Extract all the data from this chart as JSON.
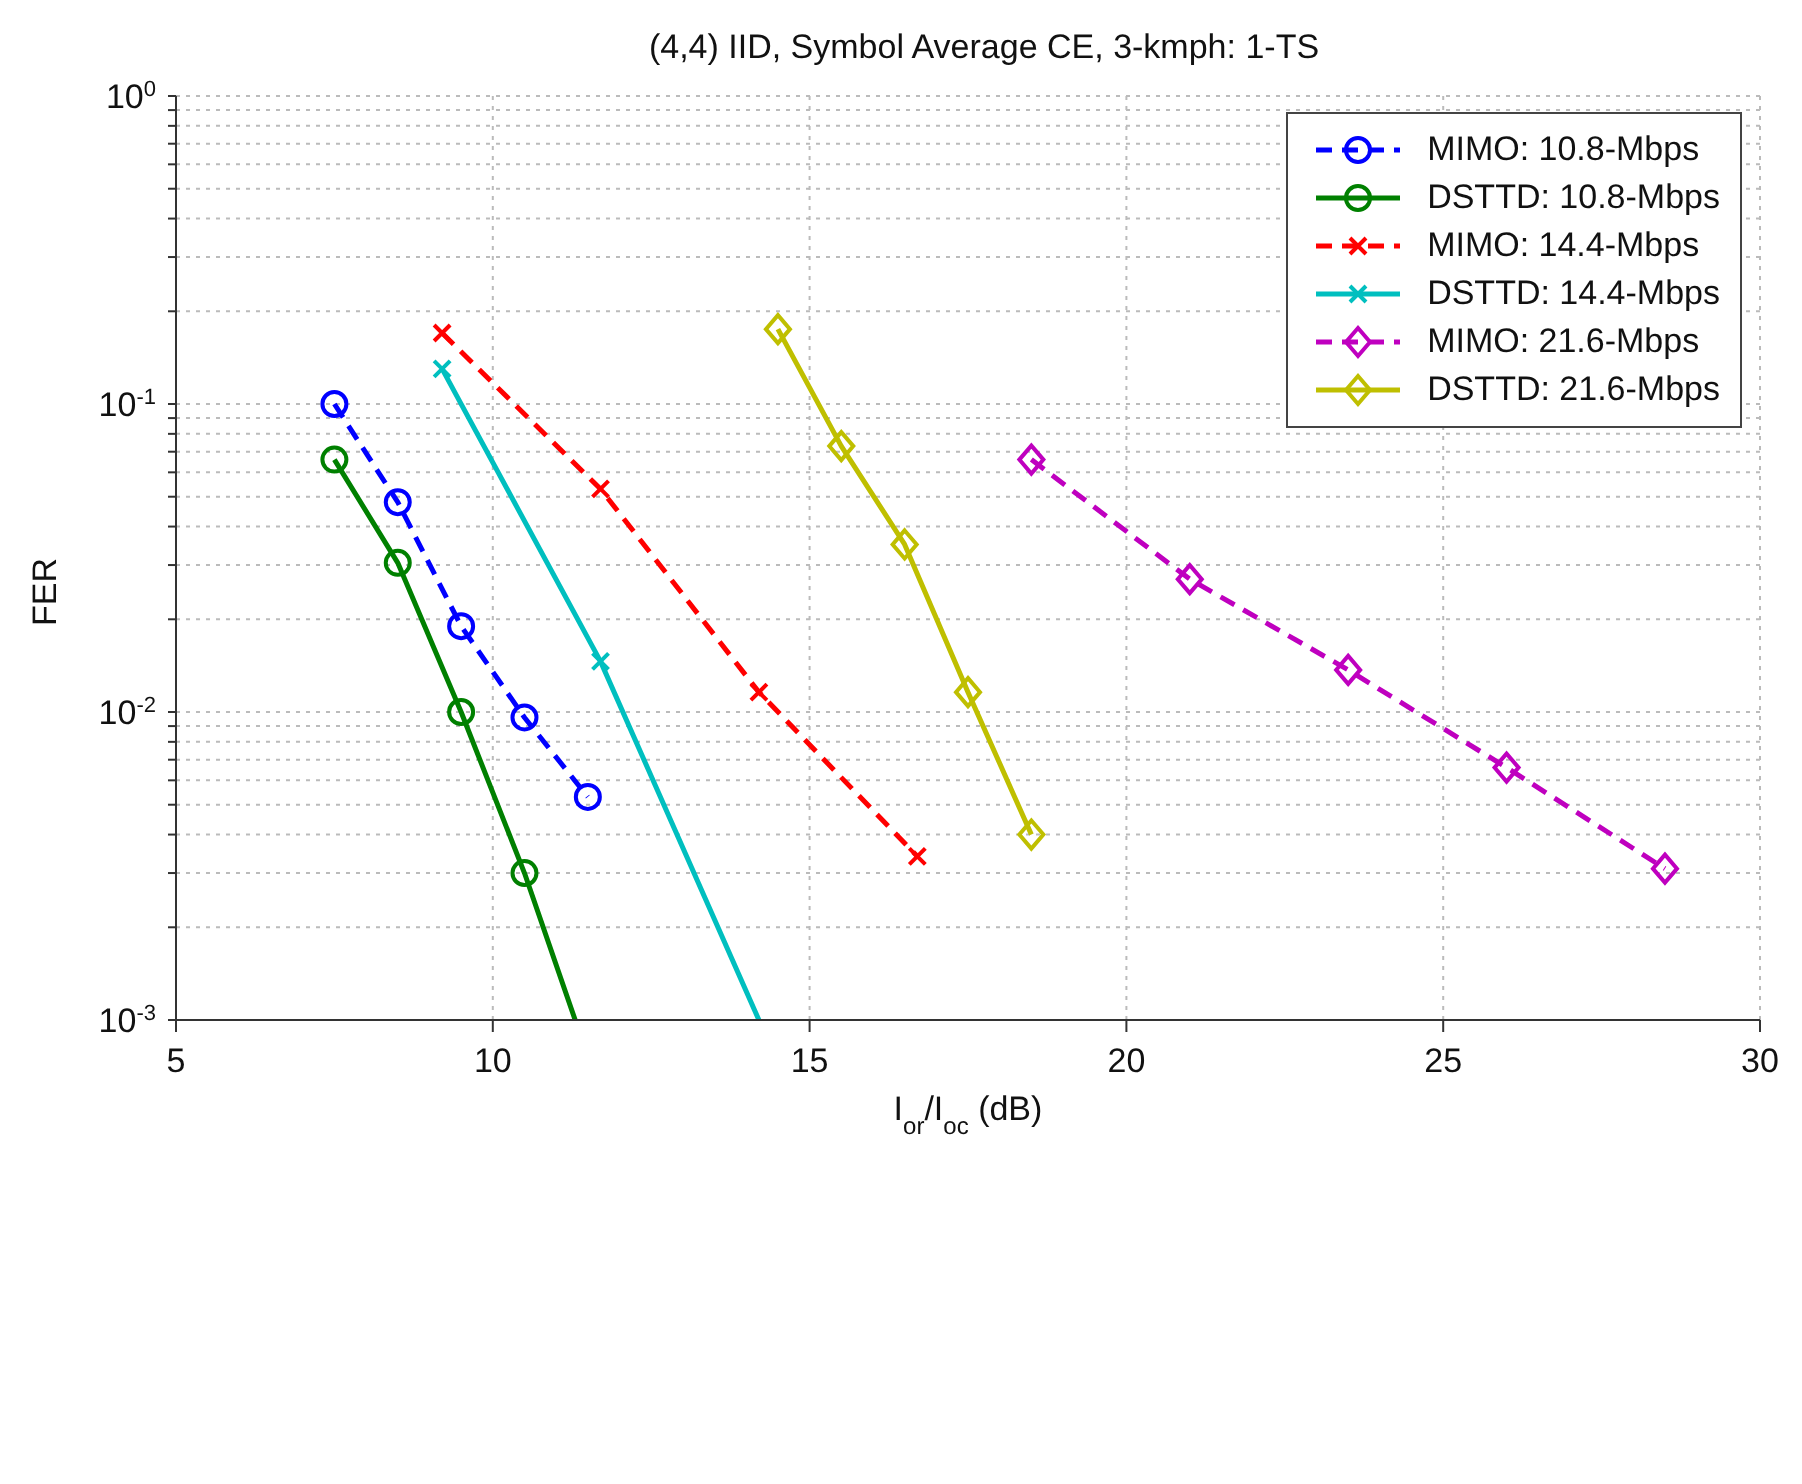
{
  "chart_data": {
    "type": "line",
    "title": "(4,4) IID, Symbol Average CE, 3-kmph: 1-TS",
    "xlabel": "I$_{or}$/I$_{oc}$ (dB)",
    "ylabel": "FER",
    "series": [
      {
        "name": "MIMO: 10.8-Mbps",
        "color": "#0000ff",
        "marker": "circle",
        "line_style": "dashed",
        "x": [
          7.5,
          8.5,
          9.5,
          10.5,
          11.5
        ],
        "values": [
          0.1,
          0.048,
          0.019,
          0.0096,
          0.0053
        ]
      },
      {
        "name": "DSTTD: 10.8-Mbps",
        "color": "#008000",
        "marker": "circle",
        "line_style": "solid",
        "x": [
          7.5,
          8.5,
          9.5,
          10.5,
          11.3
        ],
        "values": [
          0.066,
          0.0305,
          0.01,
          0.003,
          0.001
        ]
      },
      {
        "name": "MIMO: 14.4-Mbps",
        "color": "#ff0000",
        "marker": "cross",
        "line_style": "dashed",
        "x": [
          9.2,
          11.7,
          14.2,
          16.7
        ],
        "values": [
          0.17,
          0.053,
          0.0116,
          0.0034
        ]
      },
      {
        "name": "DSTTD: 14.4-Mbps",
        "color": "#00bfbf",
        "marker": "cross",
        "line_style": "solid",
        "x": [
          9.2,
          11.7,
          14.2
        ],
        "values": [
          0.13,
          0.0146,
          0.001
        ]
      },
      {
        "name": "MIMO: 21.6-Mbps",
        "color": "#bf00bf",
        "marker": "diamond",
        "line_style": "dashed",
        "x": [
          18.5,
          21,
          23.5,
          26,
          28.5
        ],
        "values": [
          0.066,
          0.027,
          0.0137,
          0.0066,
          0.0031
        ]
      },
      {
        "name": "DSTTD: 21.6-Mbps",
        "color": "#bfbf00",
        "marker": "diamond",
        "line_style": "solid",
        "x": [
          14.5,
          15.5,
          16.5,
          17.5,
          18.5
        ],
        "values": [
          0.175,
          0.073,
          0.035,
          0.0116,
          0.004
        ]
      }
    ],
    "log": "y",
    "xlim": [
      5,
      30
    ],
    "xticks": [
      5,
      10,
      15,
      20,
      25,
      30
    ],
    "ylim": [
      0.001,
      1
    ],
    "yticks": [
      {
        "value": 0.001,
        "label": "10$^{-3}$"
      },
      {
        "value": 0.002,
        "label": null
      },
      {
        "value": 0.003,
        "label": null
      },
      {
        "value": 0.004,
        "label": null
      },
      {
        "value": 0.005,
        "label": null
      },
      {
        "value": 0.006,
        "label": null
      },
      {
        "value": 0.007,
        "label": null
      },
      {
        "value": 0.008,
        "label": null
      },
      {
        "value": 0.009,
        "label": null
      },
      {
        "value": 0.01,
        "label": "10$^{-2}$"
      },
      {
        "value": 0.02,
        "label": null
      },
      {
        "value": 0.03,
        "label": null
      },
      {
        "value": 0.04,
        "label": null
      },
      {
        "value": 0.05,
        "label": null
      },
      {
        "value": 0.06,
        "label": null
      },
      {
        "value": 0.07,
        "label": null
      },
      {
        "value": 0.08,
        "label": null
      },
      {
        "value": 0.09,
        "label": null
      },
      {
        "value": 0.1,
        "label": "10$^{-1}$"
      },
      {
        "value": 0.2,
        "label": null
      },
      {
        "value": 0.3,
        "label": null
      },
      {
        "value": 0.4,
        "label": null
      },
      {
        "value": 0.5,
        "label": null
      },
      {
        "value": 0.6,
        "label": null
      },
      {
        "value": 0.7,
        "label": null
      },
      {
        "value": 0.8,
        "label": null
      },
      {
        "value": 0.9,
        "label": null
      },
      {
        "value": 1,
        "label": "10$^{0}$"
      }
    ],
    "grid": true,
    "legend": "top right"
  }
}
